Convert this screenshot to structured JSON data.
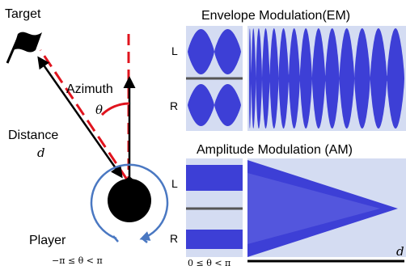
{
  "labels": {
    "target": "Target",
    "azimuth": "Azimuth",
    "theta": "θ",
    "distance": "Distance",
    "d": "d",
    "player": "Player",
    "range_left": "−π ≤ θ < π",
    "range_am": "0 ≤ θ < π",
    "em_title": "Envelope Modulation(EM)",
    "am_title": "Amplitude Modulation (AM)",
    "ch_left": "L",
    "ch_right": "R",
    "am_axis": "d"
  },
  "colors": {
    "red": "#e0141e",
    "wave": "#3d3fd6",
    "wave_light": "#6e73e6",
    "panel_bg": "#d4dcf2",
    "arrow_blue": "#4a78c2"
  },
  "icons": [
    "flag-icon",
    "player-icon",
    "rotation-arrow-icon"
  ]
}
